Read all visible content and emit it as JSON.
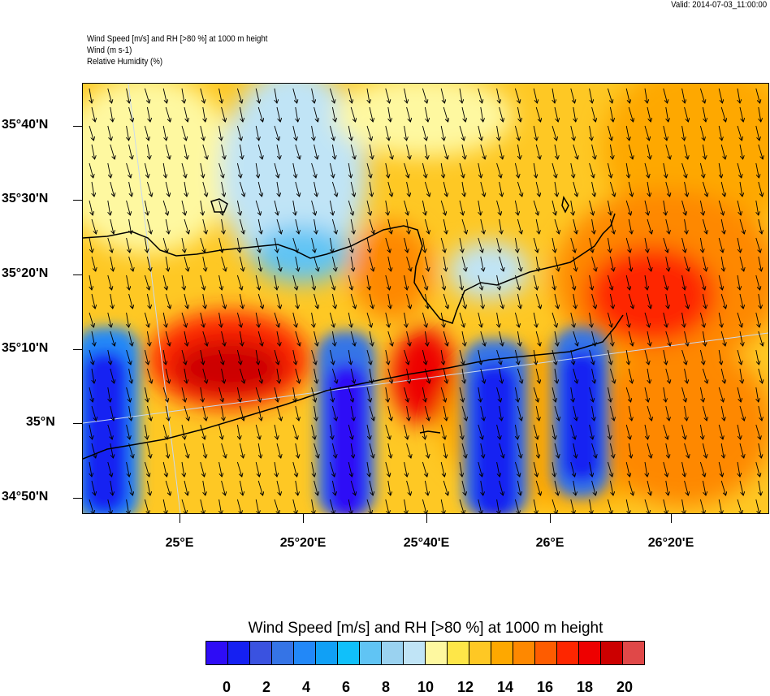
{
  "header": {
    "valid": "Valid: 2014-07-03_11:00:00",
    "title_lines": [
      "Wind Speed [m/s] and RH [>80 %] at 1000 m height",
      "Wind   (m s-1)",
      "Relative Humidity   (%)"
    ]
  },
  "map": {
    "lat_labels": [
      "35°40'N",
      "35°30'N",
      "35°20'N",
      "35°10'N",
      "35°N",
      "34°50'N"
    ],
    "lon_labels": [
      "25°E",
      "25°20'E",
      "25°40'E",
      "26°E",
      "26°20'E"
    ]
  },
  "colorbar": {
    "title": "Wind Speed [m/s] and RH [>80 %] at 1000 m height",
    "colors": [
      "#7a22ee",
      "#2e0cf6",
      "#1520f2",
      "#3a52e0",
      "#3574e6",
      "#2288f8",
      "#10a0f6",
      "#10c0fa",
      "#60c4f4",
      "#9ad2f0",
      "#c0e4f6",
      "#fef8a0",
      "#fee648",
      "#fec824",
      "#fea800",
      "#fe8800",
      "#fe5c00",
      "#fe2600",
      "#ee0000",
      "#cc0000",
      "#e04848",
      "#fdb0b0"
    ],
    "labels": [
      "0",
      "2",
      "4",
      "6",
      "8",
      "10",
      "12",
      "14",
      "16",
      "18",
      "20"
    ]
  }
}
